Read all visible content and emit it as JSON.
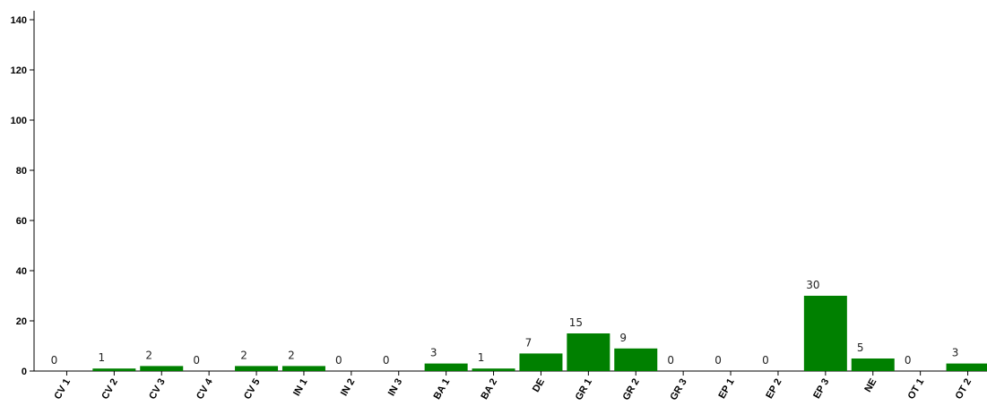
{
  "chart_data": {
    "type": "bar",
    "categories": [
      "CV 1",
      "CV 2",
      "CV 3",
      "CV 4",
      "CV 5",
      "IN 1",
      "IN 2",
      "IN 3",
      "BA 1",
      "BA 2",
      "DE",
      "GR 1",
      "GR 2",
      "GR 3",
      "EP 1",
      "EP 2",
      "EP 3",
      "NE",
      "OT 1",
      "OT 2"
    ],
    "values": [
      0,
      1,
      2,
      0,
      2,
      2,
      0,
      0,
      3,
      1,
      7,
      15,
      9,
      0,
      0,
      0,
      30,
      5,
      0,
      3
    ],
    "data_labels": [
      "0",
      "1",
      "2",
      "0",
      "2",
      "2",
      "0",
      "0",
      "3",
      "1",
      "7",
      "15",
      "9",
      "0",
      "0",
      "0",
      "30",
      "5",
      "0",
      "3"
    ],
    "title": "",
    "xlabel": "",
    "ylabel": "",
    "ylim": [
      0,
      140
    ],
    "yticks": [
      "0",
      "20",
      "40",
      "60",
      "80",
      "100",
      "120",
      "140"
    ],
    "grid": false,
    "legend": "none",
    "bar_color": "#008000"
  }
}
